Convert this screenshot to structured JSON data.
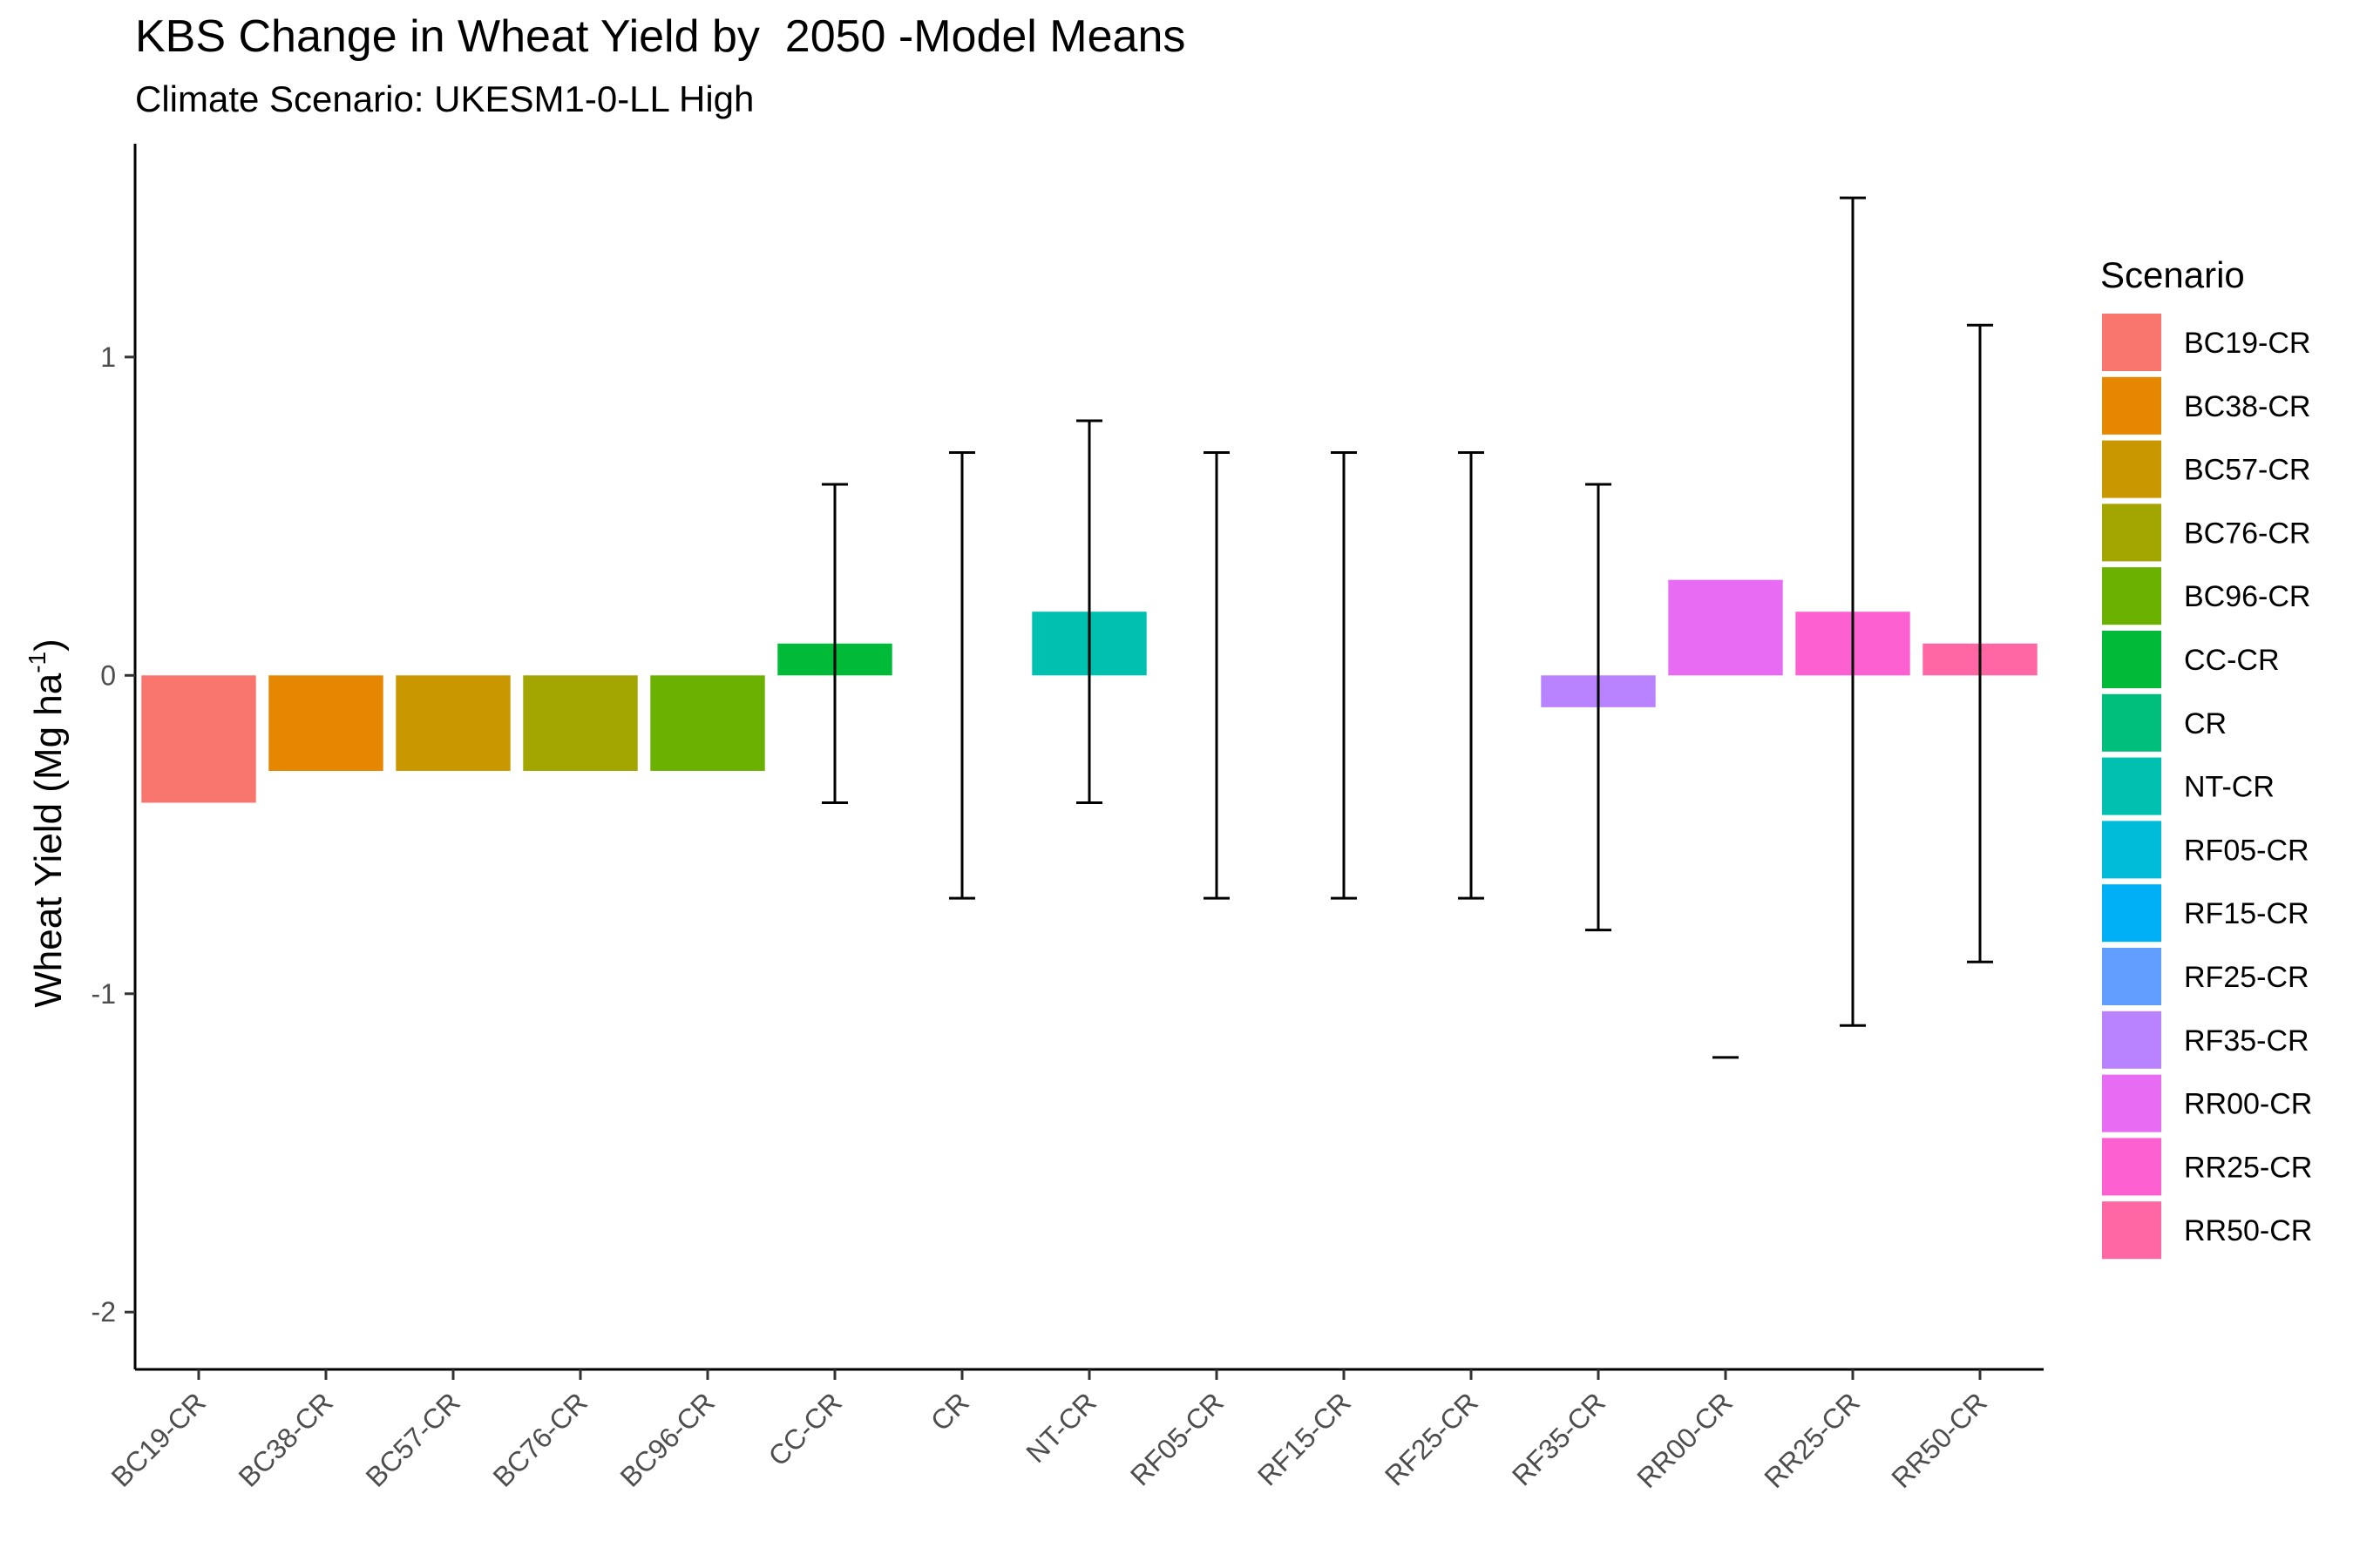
{
  "title": "KBS Change in Wheat Yield by  2050 -Model Means",
  "subtitle": "Climate Scenario: UKESM1-0-LL High",
  "chart_data": {
    "type": "bar",
    "title": "KBS Change in Wheat Yield by  2050 -Model Means",
    "subtitle": "Climate Scenario: UKESM1-0-LL High",
    "xlabel": "",
    "ylabel": "Wheat Yield (Mg ha",
    "ylabel_sup": "-1",
    "ylabel_close": ")",
    "ylim": [
      -2.18,
      1.67
    ],
    "yticks": [
      -2,
      -1,
      0,
      1
    ],
    "grid": false,
    "legend_title": "Scenario",
    "legend_position": "right",
    "categories": [
      "BC19-CR",
      "BC38-CR",
      "BC57-CR",
      "BC76-CR",
      "BC96-CR",
      "CC-CR",
      "CR",
      "NT-CR",
      "RF05-CR",
      "RF15-CR",
      "RF25-CR",
      "RF35-CR",
      "RR00-CR",
      "RR25-CR",
      "RR50-CR"
    ],
    "values": [
      -0.4,
      -0.3,
      -0.3,
      -0.3,
      -0.3,
      0.1,
      0.0,
      0.2,
      0.0,
      0.0,
      0.0,
      -0.1,
      0.3,
      0.2,
      0.1
    ],
    "error_low": [
      null,
      null,
      null,
      null,
      null,
      -0.4,
      -0.7,
      -0.4,
      -0.7,
      -0.7,
      -0.7,
      -0.8,
      -1.2,
      -1.1,
      -0.9
    ],
    "error_high": [
      null,
      null,
      null,
      null,
      null,
      0.6,
      0.7,
      0.8,
      0.7,
      0.7,
      0.7,
      0.6,
      -1.2,
      1.5,
      1.1
    ],
    "colors": [
      "#F8766D",
      "#E58700",
      "#C99800",
      "#A3A500",
      "#6BB100",
      "#00BA38",
      "#00BF7D",
      "#00C0AF",
      "#00BCD8",
      "#00B0F6",
      "#619CFF",
      "#B983FF",
      "#E76BF3",
      "#FD61D1",
      "#FF67A4"
    ]
  }
}
